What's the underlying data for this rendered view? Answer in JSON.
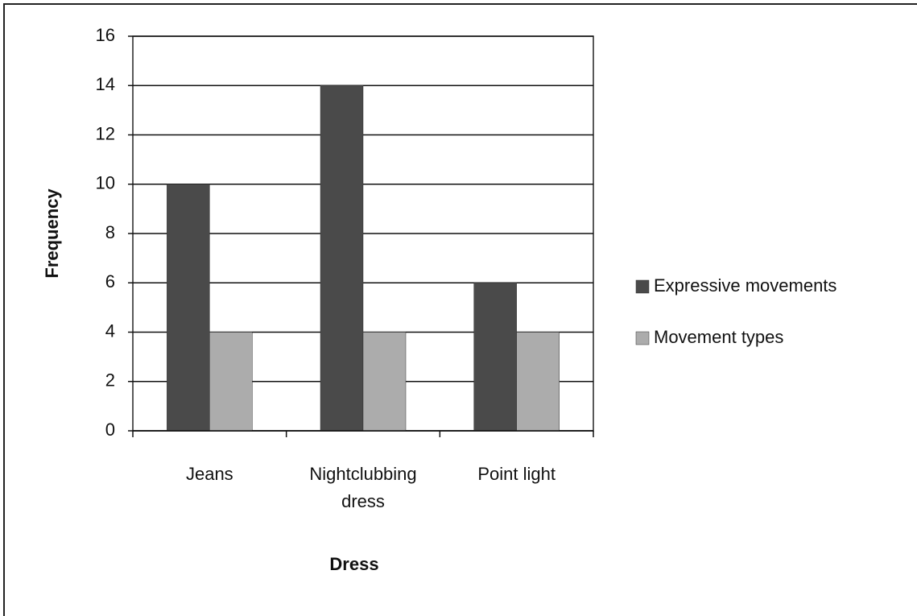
{
  "chart_data": {
    "type": "bar",
    "x_label": "Dress",
    "y_label": "Frequency",
    "categories": [
      "Jeans",
      "Nightclubbing dress",
      "Point light"
    ],
    "series": [
      {
        "name": "Expressive movements",
        "color": "#4a4a4a",
        "values": [
          10,
          14,
          6
        ]
      },
      {
        "name": "Movement types",
        "color": "#acacac",
        "values": [
          4,
          4,
          4
        ]
      }
    ],
    "ylim": [
      0,
      16
    ],
    "yticks": [
      0,
      2,
      4,
      6,
      8,
      10,
      12,
      14,
      16
    ],
    "grid": true,
    "legend": "right"
  }
}
